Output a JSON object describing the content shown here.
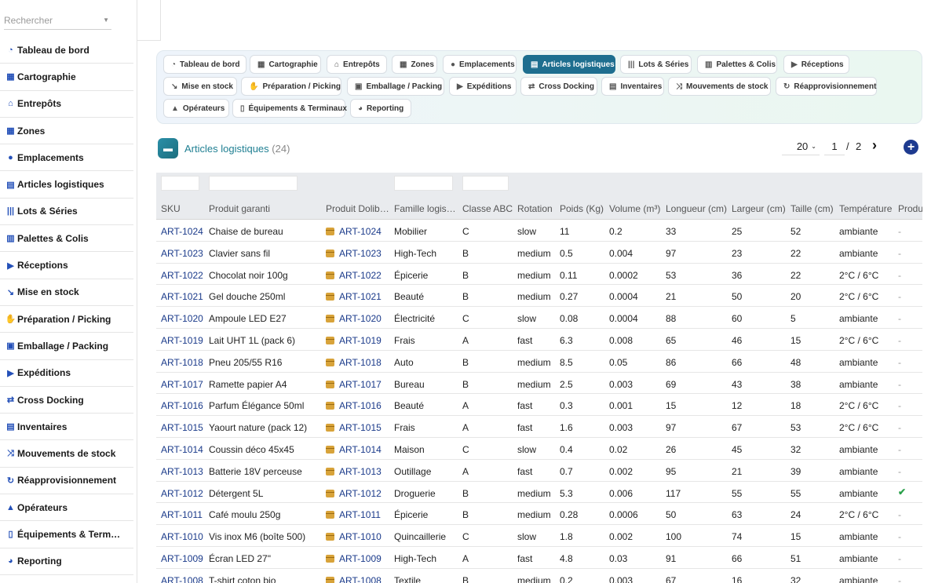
{
  "sidebar": {
    "search_placeholder": "Rechercher",
    "items": [
      {
        "label": "Tableau de bord",
        "icon": "dashboard-icon",
        "glyph": "◔"
      },
      {
        "label": "Cartographie",
        "icon": "map-icon",
        "glyph": "▦"
      },
      {
        "label": "Entrepôts",
        "icon": "warehouse-icon",
        "glyph": "⌂"
      },
      {
        "label": "Zones",
        "icon": "grid-icon",
        "glyph": "▦"
      },
      {
        "label": "Emplacements",
        "icon": "location-pin-icon",
        "glyph": "●"
      },
      {
        "label": "Articles logistiques",
        "icon": "box-icon",
        "glyph": "▤"
      },
      {
        "label": "Lots & Séries",
        "icon": "barcode-icon",
        "glyph": "|||"
      },
      {
        "label": "Palettes & Colis",
        "icon": "pallet-icon",
        "glyph": "▥"
      },
      {
        "label": "Réceptions",
        "icon": "truck-loading-icon",
        "glyph": "▶"
      },
      {
        "label": "Mise en stock",
        "icon": "dolly-icon",
        "glyph": "↘"
      },
      {
        "label": "Préparation / Picking",
        "icon": "hand-icon",
        "glyph": "✋"
      },
      {
        "label": "Emballage / Packing",
        "icon": "boxes-icon",
        "glyph": "▣"
      },
      {
        "label": "Expéditions",
        "icon": "truck-icon",
        "glyph": "▶"
      },
      {
        "label": "Cross Docking",
        "icon": "exchange-icon",
        "glyph": "⇄"
      },
      {
        "label": "Inventaires",
        "icon": "clipboard-icon",
        "glyph": "▤"
      },
      {
        "label": "Mouvements de stock",
        "icon": "shuffle-icon",
        "glyph": "⤨"
      },
      {
        "label": "Réapprovisionnement",
        "icon": "refresh-icon",
        "glyph": "↻"
      },
      {
        "label": "Opérateurs",
        "icon": "helmet-icon",
        "glyph": "▲"
      },
      {
        "label": "Équipements & Term…",
        "icon": "mobile-icon",
        "glyph": "▯"
      },
      {
        "label": "Reporting",
        "icon": "pie-chart-icon",
        "glyph": "◕"
      }
    ]
  },
  "tabs": [
    {
      "label": "Tableau de bord",
      "icon": "dashboard-icon",
      "glyph": "◔"
    },
    {
      "label": "Cartographie",
      "icon": "map-icon",
      "glyph": "▦"
    },
    {
      "label": "Entrepôts",
      "icon": "warehouse-icon",
      "glyph": "⌂"
    },
    {
      "label": "Zones",
      "icon": "grid-icon",
      "glyph": "▦"
    },
    {
      "label": "Emplacements",
      "icon": "location-pin-icon",
      "glyph": "●"
    },
    {
      "label": "Articles logistiques",
      "icon": "box-icon",
      "glyph": "▤",
      "active": true
    },
    {
      "label": "Lots & Séries",
      "icon": "barcode-icon",
      "glyph": "|||"
    },
    {
      "label": "Palettes & Colis",
      "icon": "pallet-icon",
      "glyph": "▥"
    },
    {
      "label": "Réceptions",
      "icon": "truck-loading-icon",
      "glyph": "▶"
    },
    {
      "label": "Mise en stock",
      "icon": "dolly-icon",
      "glyph": "↘"
    },
    {
      "label": "Préparation / Picking",
      "icon": "hand-icon",
      "glyph": "✋"
    },
    {
      "label": "Emballage / Packing",
      "icon": "boxes-icon",
      "glyph": "▣"
    },
    {
      "label": "Expéditions",
      "icon": "truck-icon",
      "glyph": "▶"
    },
    {
      "label": "Cross Docking",
      "icon": "exchange-icon",
      "glyph": "⇄"
    },
    {
      "label": "Inventaires",
      "icon": "clipboard-icon",
      "glyph": "▤"
    },
    {
      "label": "Mouvements de stock",
      "icon": "shuffle-icon",
      "glyph": "⤨"
    },
    {
      "label": "Réapprovisionnement",
      "icon": "refresh-icon",
      "glyph": "↻"
    },
    {
      "label": "Opérateurs",
      "icon": "helmet-icon",
      "glyph": "▲"
    },
    {
      "label": "Équipements & Terminaux",
      "icon": "mobile-icon",
      "glyph": "▯"
    },
    {
      "label": "Reporting",
      "icon": "pie-chart-icon",
      "glyph": "◕"
    }
  ],
  "list": {
    "title": "Articles logistiques",
    "count": "(24)",
    "page_size": "20",
    "page": "1",
    "page_sep": "/",
    "page_total": "2",
    "next_glyph": "›",
    "add_glyph": "+"
  },
  "table": {
    "columns": [
      "SKU",
      "Produit garanti",
      "Produit Dolib…",
      "Famille logis…",
      "Classe ABC",
      "Rotation",
      "Poids (Kg)",
      "Volume (m³)",
      "Longueur (cm)",
      "Largeur (cm)",
      "Taille (cm)",
      "Température",
      "Produi"
    ],
    "rows": [
      [
        "ART-1024",
        "Chaise de bureau",
        "ART-1024",
        "Mobilier",
        "C",
        "slow",
        "11",
        "0.2",
        "33",
        "25",
        "52",
        "ambiante",
        "-"
      ],
      [
        "ART-1023",
        "Clavier sans fil",
        "ART-1023",
        "High-Tech",
        "B",
        "medium",
        "0.5",
        "0.004",
        "97",
        "23",
        "22",
        "ambiante",
        "-"
      ],
      [
        "ART-1022",
        "Chocolat noir 100g",
        "ART-1022",
        "Épicerie",
        "B",
        "medium",
        "0.11",
        "0.0002",
        "53",
        "36",
        "22",
        "2°C / 6°C",
        "-"
      ],
      [
        "ART-1021",
        "Gel douche 250ml",
        "ART-1021",
        "Beauté",
        "B",
        "medium",
        "0.27",
        "0.0004",
        "21",
        "50",
        "20",
        "2°C / 6°C",
        "-"
      ],
      [
        "ART-1020",
        "Ampoule LED E27",
        "ART-1020",
        "Électricité",
        "C",
        "slow",
        "0.08",
        "0.0004",
        "88",
        "60",
        "5",
        "ambiante",
        "-"
      ],
      [
        "ART-1019",
        "Lait UHT 1L (pack 6)",
        "ART-1019",
        "Frais",
        "A",
        "fast",
        "6.3",
        "0.008",
        "65",
        "46",
        "15",
        "2°C / 6°C",
        "-"
      ],
      [
        "ART-1018",
        "Pneu 205/55 R16",
        "ART-1018",
        "Auto",
        "B",
        "medium",
        "8.5",
        "0.05",
        "86",
        "66",
        "48",
        "ambiante",
        "-"
      ],
      [
        "ART-1017",
        "Ramette papier A4",
        "ART-1017",
        "Bureau",
        "B",
        "medium",
        "2.5",
        "0.003",
        "69",
        "43",
        "38",
        "ambiante",
        "-"
      ],
      [
        "ART-1016",
        "Parfum Élégance 50ml",
        "ART-1016",
        "Beauté",
        "A",
        "fast",
        "0.3",
        "0.001",
        "15",
        "12",
        "18",
        "2°C / 6°C",
        "-"
      ],
      [
        "ART-1015",
        "Yaourt nature (pack 12)",
        "ART-1015",
        "Frais",
        "A",
        "fast",
        "1.6",
        "0.003",
        "97",
        "67",
        "53",
        "2°C / 6°C",
        "-"
      ],
      [
        "ART-1014",
        "Coussin déco 45x45",
        "ART-1014",
        "Maison",
        "C",
        "slow",
        "0.4",
        "0.02",
        "26",
        "45",
        "32",
        "ambiante",
        "-"
      ],
      [
        "ART-1013",
        "Batterie 18V perceuse",
        "ART-1013",
        "Outillage",
        "A",
        "fast",
        "0.7",
        "0.002",
        "95",
        "21",
        "39",
        "ambiante",
        "-"
      ],
      [
        "ART-1012",
        "Détergent 5L",
        "ART-1012",
        "Droguerie",
        "B",
        "medium",
        "5.3",
        "0.006",
        "117",
        "55",
        "55",
        "ambiante",
        "✔"
      ],
      [
        "ART-1011",
        "Café moulu 250g",
        "ART-1011",
        "Épicerie",
        "B",
        "medium",
        "0.28",
        "0.0006",
        "50",
        "63",
        "24",
        "2°C / 6°C",
        "-"
      ],
      [
        "ART-1010",
        "Vis inox M6 (boîte 500)",
        "ART-1010",
        "Quincaillerie",
        "C",
        "slow",
        "1.8",
        "0.002",
        "100",
        "74",
        "15",
        "ambiante",
        "-"
      ],
      [
        "ART-1009",
        "Écran LED 27\"",
        "ART-1009",
        "High-Tech",
        "A",
        "fast",
        "4.8",
        "0.03",
        "91",
        "66",
        "51",
        "ambiante",
        "-"
      ],
      [
        "ART-1008",
        "T-shirt coton bio",
        "ART-1008",
        "Textile",
        "B",
        "medium",
        "0.2",
        "0.003",
        "67",
        "16",
        "32",
        "ambiante",
        "-"
      ]
    ]
  },
  "colors": {
    "accent": "#1e6e8f",
    "link": "#1a3a8a",
    "sidebar_icon": "#2450b8",
    "check": "#2aa04a"
  }
}
